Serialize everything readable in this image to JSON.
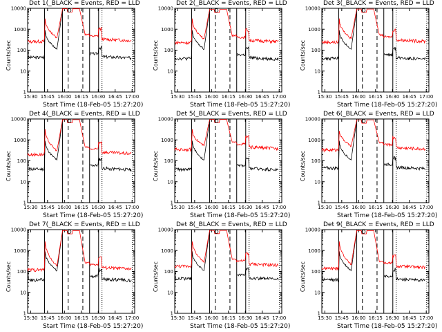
{
  "chart_data": {
    "type": "line",
    "panels": [
      {
        "title": "Det 1(_BLACK = Events, RED = LLD",
        "base_black": 45,
        "base_red": 260,
        "peak_red": 9500
      },
      {
        "title": "Det 2(_BLACK = Events, RED = LLD",
        "base_black": 40,
        "base_red": 230,
        "peak_red": 9000
      },
      {
        "title": "Det 3(_BLACK = Events, RED = LLD",
        "base_black": 40,
        "base_red": 240,
        "peak_red": 9200
      },
      {
        "title": "Det 4(_BLACK = Events, RED = LLD",
        "base_black": 40,
        "base_red": 200,
        "peak_red": 9300
      },
      {
        "title": "Det 5(_BLACK = Events, RED = LLD",
        "base_black": 40,
        "base_red": 350,
        "peak_red": 9500
      },
      {
        "title": "Det 6(_BLACK = Events, RED = LLD",
        "base_black": 45,
        "base_red": 330,
        "peak_red": 9000
      },
      {
        "title": "Det 7(_BLACK = Events, RED = LLD",
        "base_black": 40,
        "base_red": 120,
        "peak_red": 9000
      },
      {
        "title": "Det 8(_BLACK = Events, RED = LLD",
        "base_black": 45,
        "base_red": 180,
        "peak_red": 9200
      },
      {
        "title": "Det 9(_BLACK = Events, RED = LLD",
        "base_black": 40,
        "base_red": 140,
        "peak_red": 9000
      }
    ],
    "xlabel": "Start Time (18-Feb-05 15:27:20)",
    "ylabel": "Counts/sec",
    "x_ticks": [
      "15:30",
      "15:45",
      "16:00",
      "16:15",
      "16:30",
      "16:45",
      "17:00"
    ],
    "y_ticks": [
      "1",
      "10",
      "100",
      "1000",
      "10000"
    ],
    "ylim": [
      1,
      10000
    ],
    "xlim_minutes": [
      0,
      95
    ],
    "solid_vlines_minutes": [
      15,
      31,
      55,
      63
    ],
    "dashed_vlines_minutes": [
      36,
      49
    ],
    "dotted_vlines_minutes": [
      66,
      93
    ],
    "series": [
      {
        "name": "Events",
        "color": "#000000"
      },
      {
        "name": "LLD",
        "color": "#ff0000"
      }
    ]
  }
}
